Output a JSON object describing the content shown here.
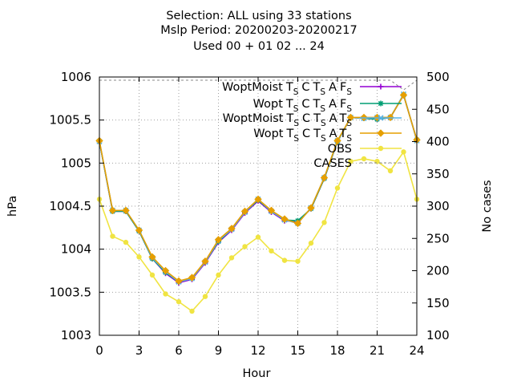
{
  "chart_data": {
    "type": "line",
    "title_lines": [
      "Selection: ALL using    33 stations",
      "Mslp   Period: 20200203-20200217",
      "Used  00 + 01 02 ... 24"
    ],
    "xlabel": "Hour",
    "ylabel": "hPa",
    "y2label": "No cases",
    "xlim": [
      0,
      24
    ],
    "ylim": [
      1003,
      1006
    ],
    "y2lim": [
      100,
      500
    ],
    "xticks": [
      "0",
      "3",
      "6",
      "9",
      "12",
      "15",
      "18",
      "21",
      "24"
    ],
    "yticks": [
      "1003",
      "1003.5",
      "1004",
      "1004.5",
      "1005",
      "1005.5",
      "1006"
    ],
    "y2ticks": [
      "100",
      "150",
      "200",
      "250",
      "300",
      "350",
      "400",
      "450",
      "500"
    ],
    "grid": true,
    "legend_position": "top-right",
    "x": [
      0,
      1,
      2,
      3,
      4,
      5,
      6,
      7,
      8,
      9,
      10,
      11,
      12,
      13,
      14,
      15,
      16,
      17,
      18,
      19,
      20,
      21,
      22,
      23,
      24
    ],
    "series": [
      {
        "legend": {
          "main": "WoptMoist",
          "pieces": [
            [
              "T",
              "S"
            ],
            [
              "C",
              ""
            ],
            [
              "T",
              "S"
            ],
            [
              "A",
              ""
            ],
            [
              "F",
              "S"
            ]
          ]
        },
        "color": "#9400d3",
        "marker": "plus",
        "values": [
          1005.25,
          1004.44,
          1004.44,
          1004.21,
          1003.89,
          1003.72,
          1003.61,
          1003.65,
          1003.84,
          1004.08,
          1004.22,
          1004.42,
          1004.56,
          1004.43,
          1004.33,
          1004.32,
          1004.47,
          1004.82,
          1005.25,
          1005.53,
          1005.52,
          1005.51,
          1005.53,
          1005.79,
          1005.27
        ],
        "axis": "y"
      },
      {
        "legend": {
          "main": "Wopt",
          "pieces": [
            [
              "T",
              "S"
            ],
            [
              "C",
              ""
            ],
            [
              "T",
              "S"
            ],
            [
              "A",
              ""
            ],
            [
              "F",
              "S"
            ]
          ]
        },
        "color": "#009e73",
        "marker": "star",
        "values": [
          1005.25,
          1004.44,
          1004.44,
          1004.21,
          1003.89,
          1003.73,
          1003.62,
          1003.66,
          1003.85,
          1004.09,
          1004.23,
          1004.43,
          1004.57,
          1004.44,
          1004.34,
          1004.33,
          1004.47,
          1004.82,
          1005.25,
          1005.53,
          1005.52,
          1005.51,
          1005.53,
          1005.79,
          1005.27
        ],
        "axis": "y"
      },
      {
        "legend": {
          "main": "WoptMoist",
          "pieces": [
            [
              "T",
              "S"
            ],
            [
              "C",
              ""
            ],
            [
              "T",
              "S"
            ],
            [
              "A",
              ""
            ],
            [
              "T",
              "S"
            ]
          ]
        },
        "color": "#56b4e9",
        "marker": "x",
        "values": [
          1005.25,
          1004.45,
          1004.45,
          1004.22,
          1003.9,
          1003.74,
          1003.62,
          1003.66,
          1003.85,
          1004.1,
          1004.23,
          1004.43,
          1004.58,
          1004.44,
          1004.34,
          1004.3,
          1004.48,
          1004.83,
          1005.26,
          1005.53,
          1005.52,
          1005.53,
          1005.53,
          1005.8,
          1005.26
        ],
        "axis": "y"
      },
      {
        "legend": {
          "main": "Wopt",
          "pieces": [
            [
              "T",
              "S"
            ],
            [
              "C",
              ""
            ],
            [
              "T",
              "S"
            ],
            [
              "A",
              ""
            ],
            [
              "T",
              "S"
            ]
          ]
        },
        "color": "#e69f00",
        "marker": "diamond",
        "values": [
          1005.26,
          1004.45,
          1004.45,
          1004.22,
          1003.91,
          1003.75,
          1003.63,
          1003.67,
          1003.86,
          1004.11,
          1004.24,
          1004.44,
          1004.58,
          1004.45,
          1004.35,
          1004.3,
          1004.48,
          1004.83,
          1005.26,
          1005.53,
          1005.53,
          1005.53,
          1005.53,
          1005.79,
          1005.27
        ],
        "axis": "y"
      },
      {
        "legend": {
          "main": "OBS",
          "pieces": []
        },
        "color": "#f0e442",
        "marker": "circle",
        "values": [
          1004.58,
          1004.15,
          1004.08,
          1003.91,
          1003.7,
          1003.48,
          1003.39,
          1003.28,
          1003.45,
          1003.7,
          1003.9,
          1004.03,
          1004.14,
          1003.98,
          1003.87,
          1003.86,
          1004.07,
          1004.31,
          1004.71,
          1005.02,
          1005.05,
          1005.02,
          1004.91,
          1005.13,
          1004.58
        ],
        "axis": "y"
      },
      {
        "legend": {
          "main": "CASES",
          "pieces": []
        },
        "color": "#888888",
        "dashed": true,
        "marker": "none",
        "values": [
          495,
          495,
          495,
          495,
          495,
          495,
          495,
          495,
          495,
          495,
          495,
          495,
          495,
          495,
          495,
          495,
          495,
          495,
          495,
          495,
          495,
          495,
          495,
          480,
          495
        ],
        "axis": "y2"
      }
    ]
  }
}
